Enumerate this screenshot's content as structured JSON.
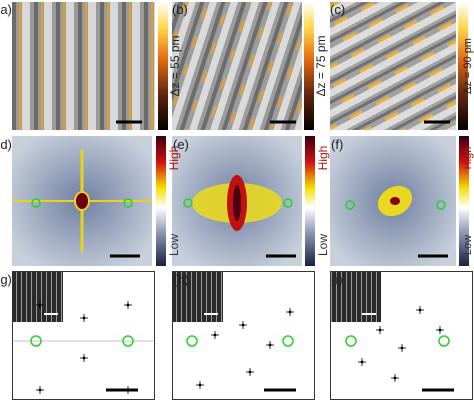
{
  "panels": [
    {
      "label": "(a)",
      "colorbar": "Δz = 55 pm"
    },
    {
      "label": "(b)",
      "colorbar": "Δz = 75 pm"
    },
    {
      "label": "(c)",
      "colorbar": "Δz = 90 pm"
    },
    {
      "label": "(d)",
      "high": "High",
      "low": "Low"
    },
    {
      "label": "(e)",
      "high": "High",
      "low": "Low"
    },
    {
      "label": "(f)",
      "high": "High",
      "low": "Low"
    },
    {
      "label": "(g)"
    },
    {
      "label": "(h)"
    },
    {
      "label": "(i)"
    }
  ]
}
